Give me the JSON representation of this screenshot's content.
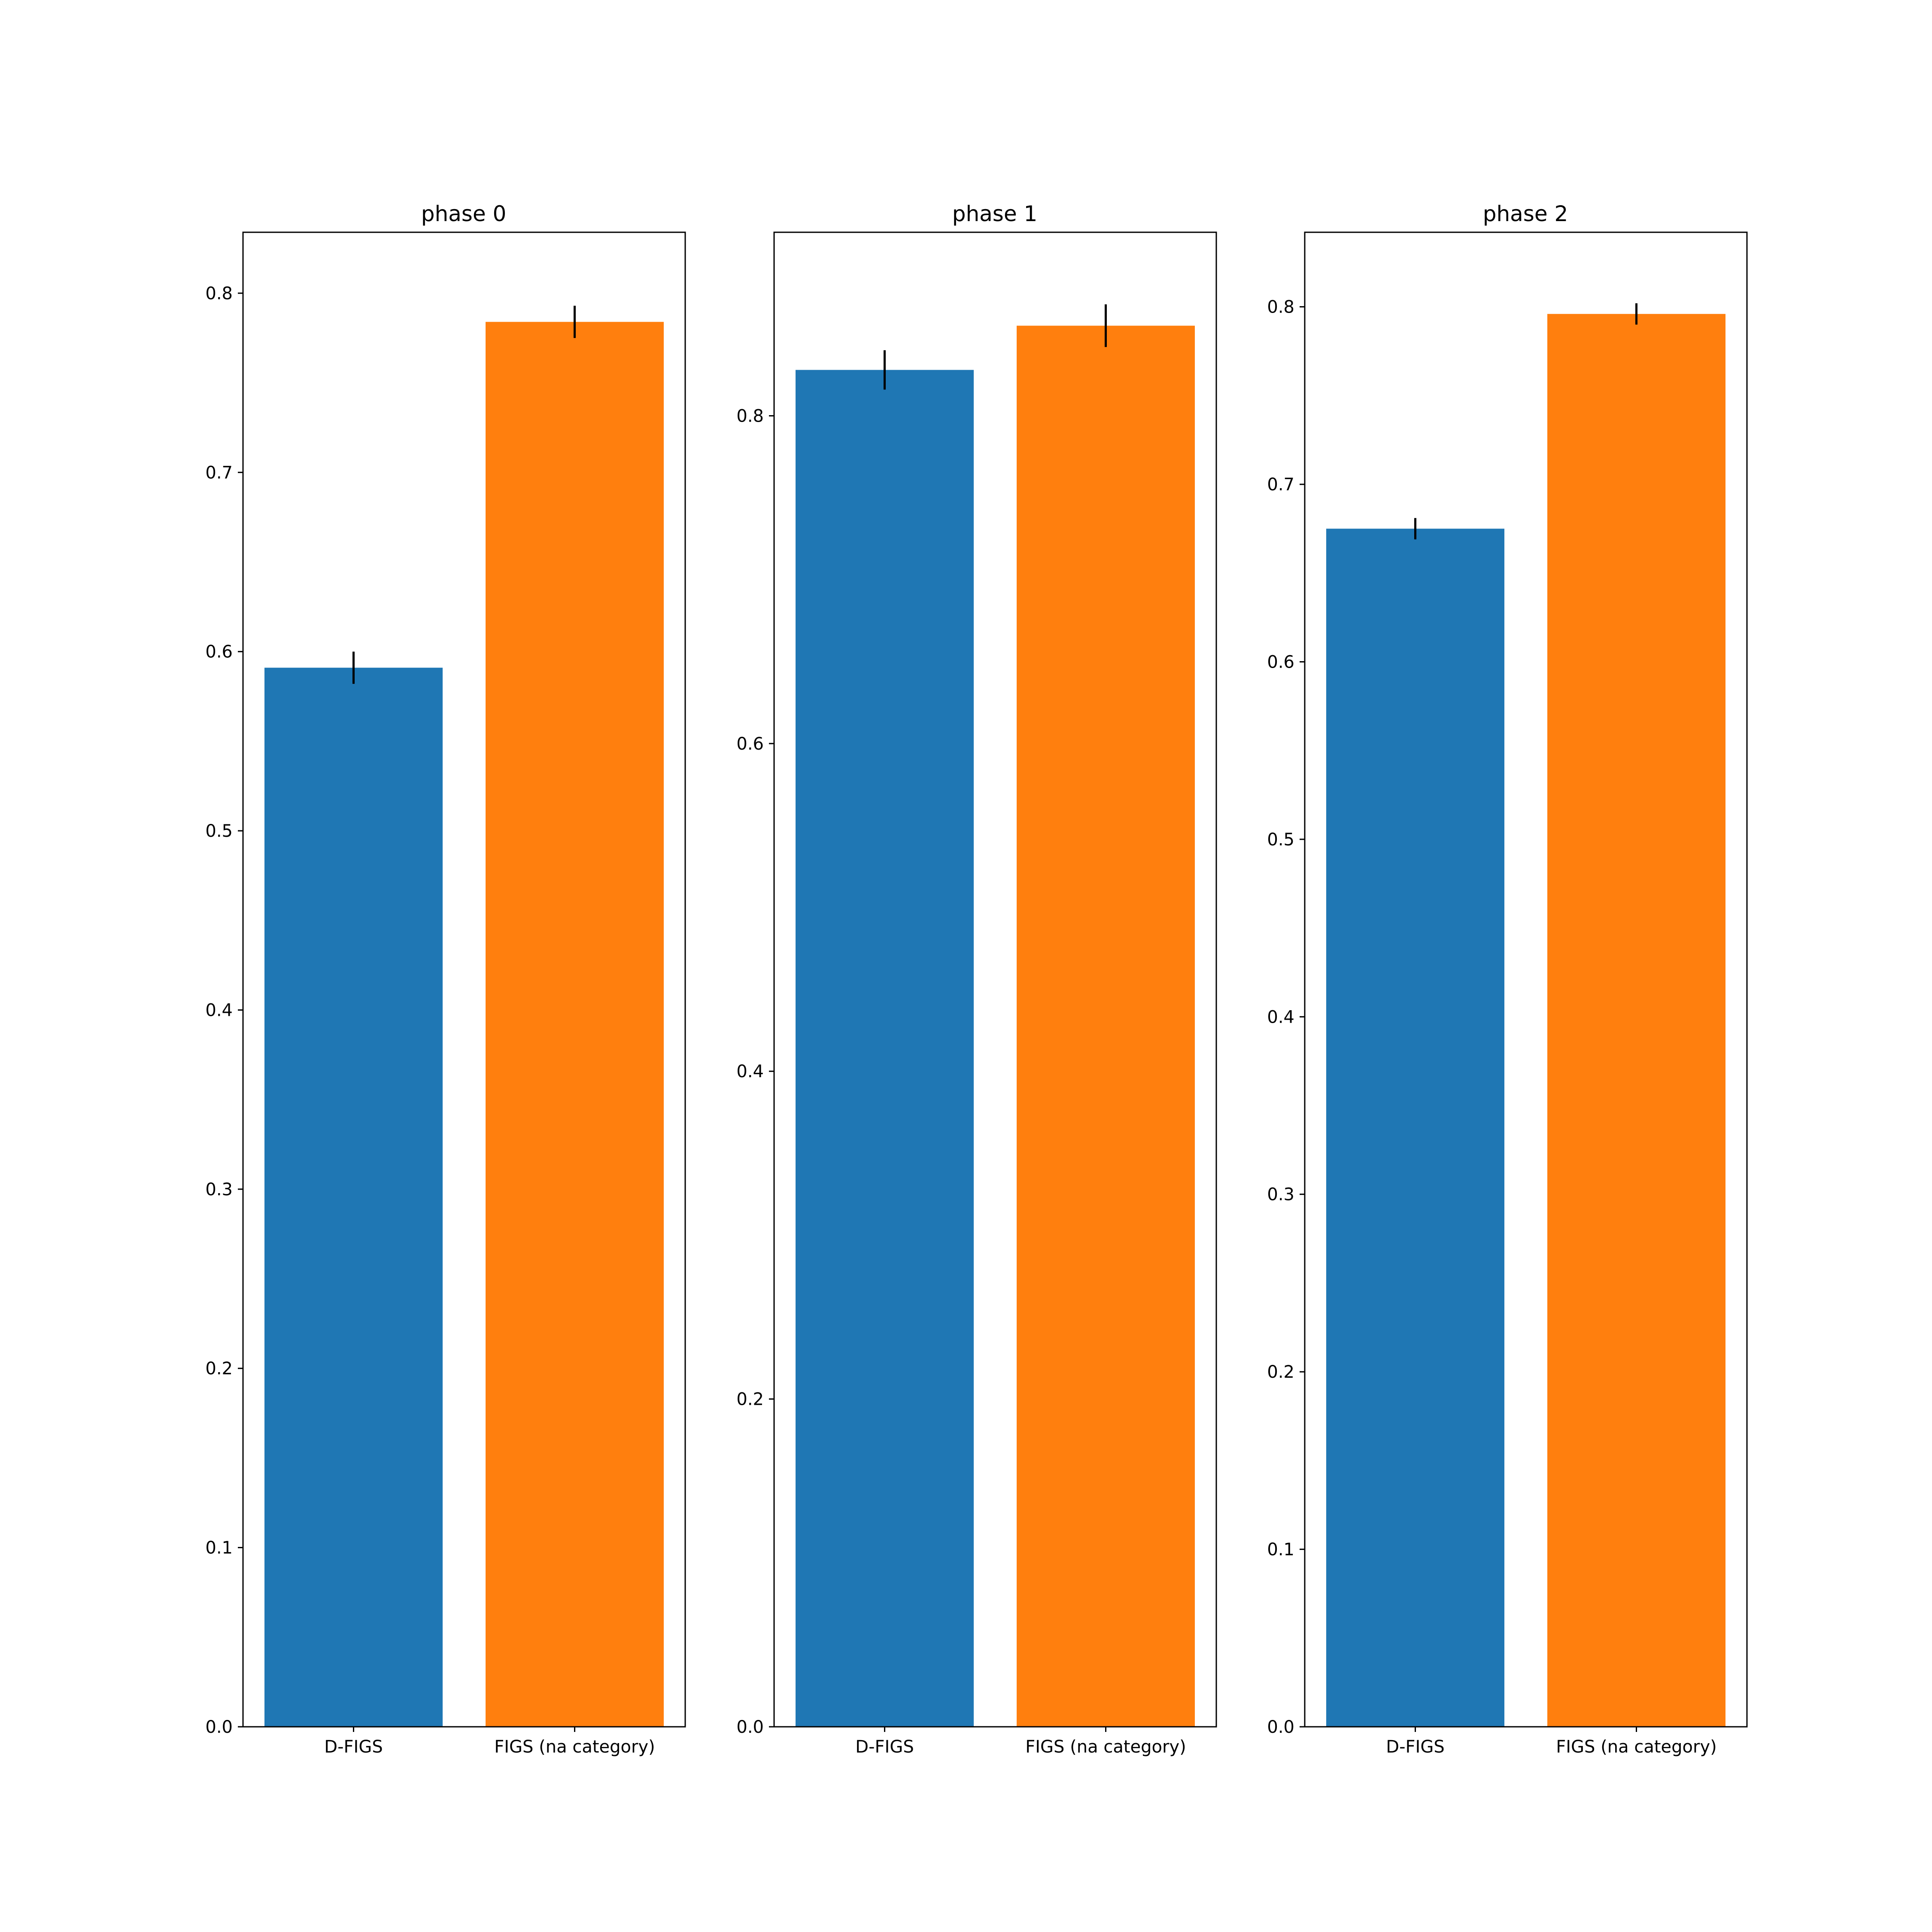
{
  "colors": {
    "d_figs": "#1f77b4",
    "figs_na": "#ff7f0e",
    "axis": "#000000",
    "error_bar": "#000000"
  },
  "chart_data": [
    {
      "type": "bar",
      "title": "phase 0",
      "categories": [
        "D-FIGS",
        "FIGS (na category)"
      ],
      "values": [
        0.591,
        0.784
      ],
      "errors": [
        0.009,
        0.009
      ],
      "ylim": [
        0,
        0.834
      ],
      "yticks": [
        0.0,
        0.1,
        0.2,
        0.3,
        0.4,
        0.5,
        0.6,
        0.7,
        0.8
      ],
      "ytick_labels": [
        "0.0",
        "0.1",
        "0.2",
        "0.3",
        "0.4",
        "0.5",
        "0.6",
        "0.7",
        "0.8"
      ],
      "grid": false
    },
    {
      "type": "bar",
      "title": "phase 1",
      "categories": [
        "D-FIGS",
        "FIGS (na category)"
      ],
      "values": [
        0.828,
        0.855
      ],
      "errors": [
        0.012,
        0.013
      ],
      "ylim": [
        0,
        0.912
      ],
      "yticks": [
        0.0,
        0.2,
        0.4,
        0.6,
        0.8
      ],
      "ytick_labels": [
        "0.0",
        "0.2",
        "0.4",
        "0.6",
        "0.8"
      ],
      "grid": false
    },
    {
      "type": "bar",
      "title": "phase 2",
      "categories": [
        "D-FIGS",
        "FIGS (na category)"
      ],
      "values": [
        0.675,
        0.796
      ],
      "errors": [
        0.006,
        0.006
      ],
      "ylim": [
        0,
        0.842
      ],
      "yticks": [
        0.0,
        0.1,
        0.2,
        0.3,
        0.4,
        0.5,
        0.6,
        0.7,
        0.8
      ],
      "ytick_labels": [
        "0.0",
        "0.1",
        "0.2",
        "0.3",
        "0.4",
        "0.5",
        "0.6",
        "0.7",
        "0.8"
      ],
      "grid": false
    }
  ]
}
